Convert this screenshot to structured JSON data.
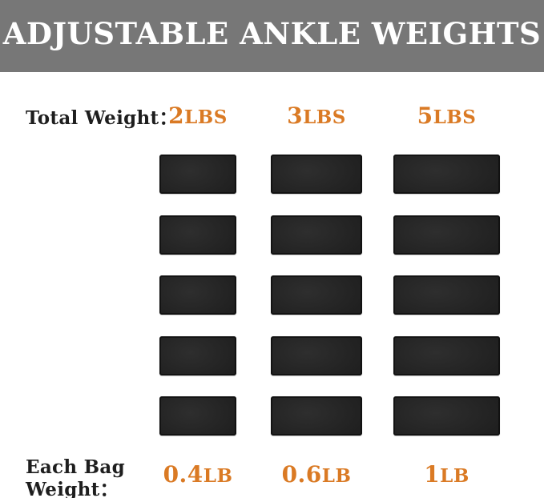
{
  "header": {
    "title": "ADJUSTABLE ANKLE WEIGHTS"
  },
  "total_weight": {
    "label": "Total Weight："
  },
  "each_bag_weight": {
    "label_line1": "Each Bag",
    "label_line2": "Weight："
  },
  "columns": [
    {
      "total_value": "2",
      "total_unit": "LBS",
      "each_value": "0.4",
      "each_unit": "LB"
    },
    {
      "total_value": "3",
      "total_unit": "LBS",
      "each_value": "0.6",
      "each_unit": "LB"
    },
    {
      "total_value": "5",
      "total_unit": "LBS",
      "each_value": "1",
      "each_unit": "LB"
    }
  ],
  "grid": {
    "columns": 3,
    "bags_per_column": 5
  },
  "colors": {
    "banner_bg": "#777777",
    "accent_orange": "#da7a24",
    "text_black": "#1e1e1e",
    "bag_dark": "#212121",
    "background": "#ffffff"
  }
}
